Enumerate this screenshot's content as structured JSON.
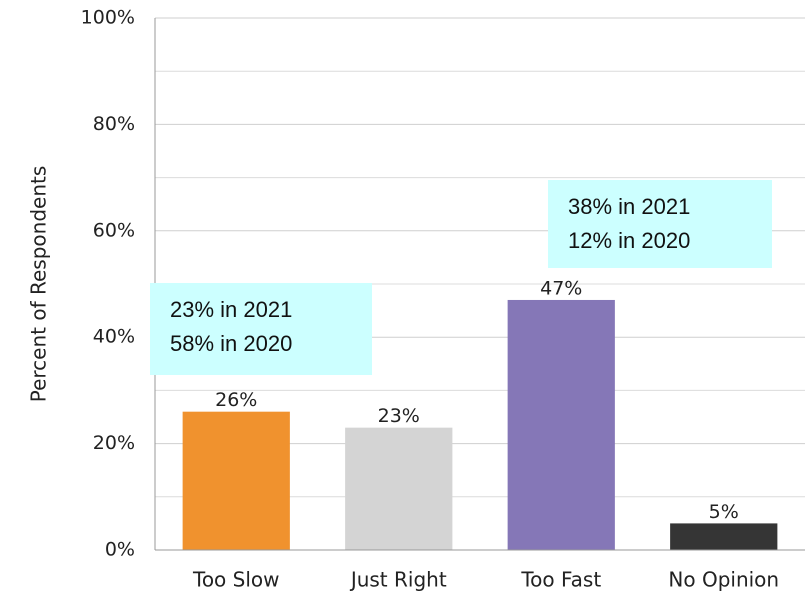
{
  "chart_data": {
    "type": "bar",
    "y_label": "Percent of Respondents",
    "categories": [
      "Too Slow",
      "Just Right",
      "Too Fast",
      "No Opinion"
    ],
    "values": [
      26,
      23,
      47,
      5
    ],
    "value_labels": [
      "26%",
      "23%",
      "47%",
      "5%"
    ],
    "colors": [
      "#f0922e",
      "#d4d4d4",
      "#8577b7",
      "#353535"
    ],
    "ylim": [
      0,
      100
    ],
    "yticks": [
      {
        "value": 0,
        "label": "0%"
      },
      {
        "value": 20,
        "label": "20%"
      },
      {
        "value": 40,
        "label": "40%"
      },
      {
        "value": 60,
        "label": "60%"
      },
      {
        "value": 80,
        "label": "80%"
      },
      {
        "value": 100,
        "label": "100%"
      }
    ],
    "minor_yticks": [
      10,
      30,
      50,
      70,
      90
    ],
    "grid": true,
    "annotations": [
      {
        "lines": [
          "23% in 2021",
          "58% in 2020"
        ]
      },
      {
        "lines": [
          "38% in 2021",
          "12% in 2020"
        ]
      }
    ]
  }
}
